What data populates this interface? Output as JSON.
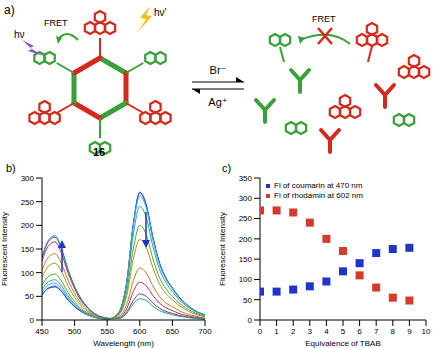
{
  "diagram": {
    "panel_label": "a)",
    "compound_number": "16",
    "excitation": "hν",
    "emission": "hν'",
    "energy_transfer": "FRET",
    "forward_reagent": "Br⁻",
    "reverse_reagent": "Ag⁺"
  },
  "chart_data": [
    {
      "panel_label": "b)",
      "type": "line",
      "x": [
        450,
        460,
        470,
        480,
        490,
        500,
        510,
        520,
        530,
        540,
        550,
        560,
        570,
        580,
        590,
        600,
        610,
        620,
        630,
        640,
        650,
        660,
        670,
        680,
        690,
        700
      ],
      "series": [
        {
          "color": "#1f1fa8",
          "values": [
            53,
            67,
            70,
            60,
            42,
            28,
            18,
            11,
            6,
            3,
            1,
            6,
            22,
            81,
            203,
            270,
            243,
            176,
            122,
            89,
            68,
            49,
            35,
            24,
            16,
            11
          ]
        },
        {
          "color": "#2a6fd6",
          "values": [
            54,
            68,
            72,
            61,
            43,
            29,
            18,
            11,
            6,
            3,
            1,
            6,
            21,
            80,
            201,
            268,
            241,
            174,
            121,
            88,
            67,
            48,
            35,
            24,
            16,
            11
          ]
        },
        {
          "color": "#3cb0e0",
          "values": [
            59,
            74,
            78,
            66,
            47,
            31,
            20,
            12,
            6,
            3,
            2,
            6,
            21,
            79,
            197,
            262,
            236,
            170,
            118,
            86,
            66,
            47,
            34,
            24,
            16,
            10
          ]
        },
        {
          "color": "#2aa198",
          "values": [
            64,
            81,
            85,
            72,
            51,
            34,
            21,
            13,
            7,
            3,
            2,
            6,
            19,
            72,
            180,
            240,
            216,
            156,
            108,
            79,
            60,
            43,
            31,
            22,
            14,
            10
          ]
        },
        {
          "color": "#5aa02c",
          "values": [
            73,
            92,
            97,
            82,
            58,
            39,
            24,
            15,
            8,
            4,
            2,
            5,
            16,
            60,
            150,
            200,
            180,
            130,
            90,
            66,
            50,
            36,
            26,
            18,
            12,
            8
          ]
        },
        {
          "color": "#9a9a2a",
          "values": [
            90,
            114,
            120,
            102,
            72,
            48,
            30,
            18,
            10,
            5,
            2,
            5,
            14,
            51,
            128,
            170,
            153,
            111,
            77,
            56,
            43,
            31,
            22,
            15,
            10,
            7
          ]
        },
        {
          "color": "#c87a20",
          "values": [
            105,
            133,
            140,
            119,
            84,
            56,
            35,
            21,
            11,
            6,
            3,
            4,
            9,
            33,
            83,
            110,
            99,
            72,
            50,
            36,
            28,
            20,
            14,
            10,
            7,
            4
          ]
        },
        {
          "color": "#b03060",
          "values": [
            124,
            157,
            165,
            140,
            99,
            66,
            41,
            25,
            13,
            7,
            3,
            3,
            6,
            24,
            60,
            80,
            72,
            52,
            36,
            26,
            20,
            14,
            10,
            7,
            5,
            3
          ]
        },
        {
          "color": "#6a3d9a",
          "values": [
            131,
            166,
            175,
            149,
            105,
            70,
            44,
            26,
            14,
            7,
            4,
            3,
            4,
            17,
            41,
            55,
            50,
            36,
            25,
            18,
            14,
            10,
            7,
            5,
            3,
            2
          ]
        },
        {
          "color": "#2a9a8a",
          "values": [
            134,
            169,
            178,
            151,
            107,
            71,
            45,
            27,
            14,
            7,
            4,
            3,
            4,
            14,
            34,
            45,
            41,
            29,
            20,
            15,
            11,
            8,
            6,
            4,
            3,
            2
          ]
        }
      ],
      "xlim": [
        450,
        700
      ],
      "xticks": [
        450,
        500,
        550,
        600,
        650,
        700
      ],
      "ylim": [
        0,
        300
      ],
      "yticks": [
        0,
        50,
        100,
        150,
        200,
        250,
        300
      ],
      "x_label": "Wavelength (nm)",
      "y_label": "Fluorescent Intensity",
      "grid": false,
      "marker": "none",
      "line_style": "solid"
    },
    {
      "panel_label": "c)",
      "type": "scatter",
      "x": [
        0,
        1,
        2,
        3,
        4,
        5,
        6,
        7,
        8,
        9
      ],
      "series": [
        {
          "name": "Fl of coumarin at 470 nm",
          "color": "#2233cc",
          "values": [
            70,
            70,
            75,
            83,
            95,
            120,
            140,
            165,
            175,
            178
          ]
        },
        {
          "name": "Fl of rhodamin at 602 nm",
          "color": "#d23c2a",
          "values": [
            270,
            270,
            265,
            240,
            200,
            170,
            110,
            80,
            55,
            48
          ]
        }
      ],
      "xlim": [
        0,
        10
      ],
      "xticks": [
        0,
        1,
        2,
        3,
        4,
        5,
        6,
        7,
        8,
        9,
        10
      ],
      "ylim": [
        0,
        350
      ],
      "yticks": [
        0,
        50,
        100,
        150,
        200,
        250,
        300,
        350
      ],
      "x_label": "Equivalence of TBAB",
      "y_label": "Fluorescent Intensity",
      "legend": "upper left",
      "marker": "square",
      "grid": false
    }
  ]
}
